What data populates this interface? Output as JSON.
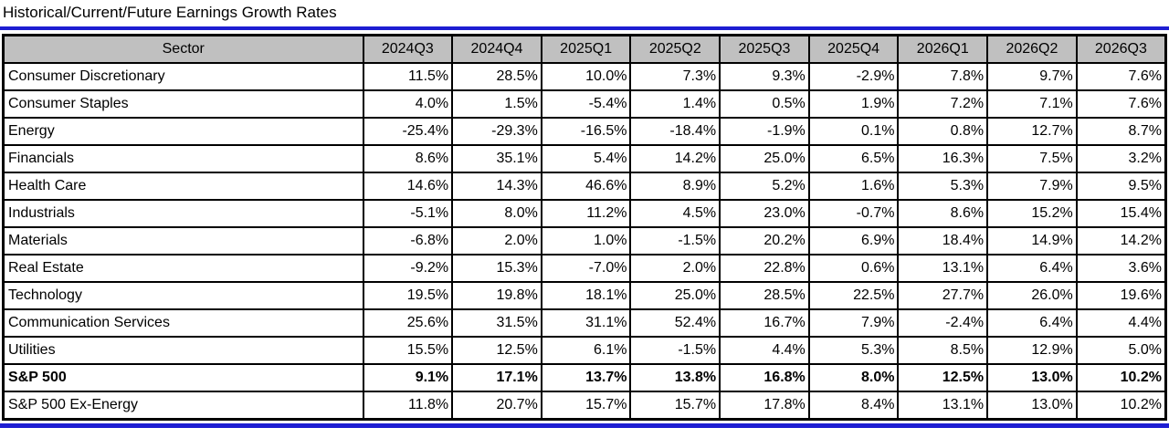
{
  "title": "Historical/Current/Future Earnings Growth Rates",
  "colors": {
    "accent_blue": "#1e1ed2",
    "header_bg": "#c0c0c0",
    "grid": "#000000"
  },
  "chart_data": {
    "type": "table",
    "title": "Historical/Current/Future Earnings Growth Rates",
    "columns": [
      "Sector",
      "2024Q3",
      "2024Q4",
      "2025Q1",
      "2025Q2",
      "2025Q3",
      "2025Q4",
      "2026Q1",
      "2026Q2",
      "2026Q3"
    ],
    "rows": [
      {
        "sector": "Consumer Discretionary",
        "bold": false,
        "values": [
          "11.5%",
          "28.5%",
          "10.0%",
          "7.3%",
          "9.3%",
          "-2.9%",
          "7.8%",
          "9.7%",
          "7.6%"
        ]
      },
      {
        "sector": "Consumer Staples",
        "bold": false,
        "values": [
          "4.0%",
          "1.5%",
          "-5.4%",
          "1.4%",
          "0.5%",
          "1.9%",
          "7.2%",
          "7.1%",
          "7.6%"
        ]
      },
      {
        "sector": "Energy",
        "bold": false,
        "values": [
          "-25.4%",
          "-29.3%",
          "-16.5%",
          "-18.4%",
          "-1.9%",
          "0.1%",
          "0.8%",
          "12.7%",
          "8.7%"
        ]
      },
      {
        "sector": "Financials",
        "bold": false,
        "values": [
          "8.6%",
          "35.1%",
          "5.4%",
          "14.2%",
          "25.0%",
          "6.5%",
          "16.3%",
          "7.5%",
          "3.2%"
        ]
      },
      {
        "sector": "Health Care",
        "bold": false,
        "values": [
          "14.6%",
          "14.3%",
          "46.6%",
          "8.9%",
          "5.2%",
          "1.6%",
          "5.3%",
          "7.9%",
          "9.5%"
        ]
      },
      {
        "sector": "Industrials",
        "bold": false,
        "values": [
          "-5.1%",
          "8.0%",
          "11.2%",
          "4.5%",
          "23.0%",
          "-0.7%",
          "8.6%",
          "15.2%",
          "15.4%"
        ]
      },
      {
        "sector": "Materials",
        "bold": false,
        "values": [
          "-6.8%",
          "2.0%",
          "1.0%",
          "-1.5%",
          "20.2%",
          "6.9%",
          "18.4%",
          "14.9%",
          "14.2%"
        ]
      },
      {
        "sector": "Real Estate",
        "bold": false,
        "values": [
          "-9.2%",
          "15.3%",
          "-7.0%",
          "2.0%",
          "22.8%",
          "0.6%",
          "13.1%",
          "6.4%",
          "3.6%"
        ]
      },
      {
        "sector": "Technology",
        "bold": false,
        "values": [
          "19.5%",
          "19.8%",
          "18.1%",
          "25.0%",
          "28.5%",
          "22.5%",
          "27.7%",
          "26.0%",
          "19.6%"
        ]
      },
      {
        "sector": "Communication Services",
        "bold": false,
        "values": [
          "25.6%",
          "31.5%",
          "31.1%",
          "52.4%",
          "16.7%",
          "7.9%",
          "-2.4%",
          "6.4%",
          "4.4%"
        ]
      },
      {
        "sector": "Utilities",
        "bold": false,
        "values": [
          "15.5%",
          "12.5%",
          "6.1%",
          "-1.5%",
          "4.4%",
          "5.3%",
          "8.5%",
          "12.9%",
          "5.0%"
        ]
      },
      {
        "sector": "S&P 500",
        "bold": true,
        "values": [
          "9.1%",
          "17.1%",
          "13.7%",
          "13.8%",
          "16.8%",
          "8.0%",
          "12.5%",
          "13.0%",
          "10.2%"
        ]
      },
      {
        "sector": "S&P 500 Ex-Energy",
        "bold": false,
        "values": [
          "11.8%",
          "20.7%",
          "15.7%",
          "15.7%",
          "17.8%",
          "8.4%",
          "13.1%",
          "13.0%",
          "10.2%"
        ]
      }
    ]
  }
}
